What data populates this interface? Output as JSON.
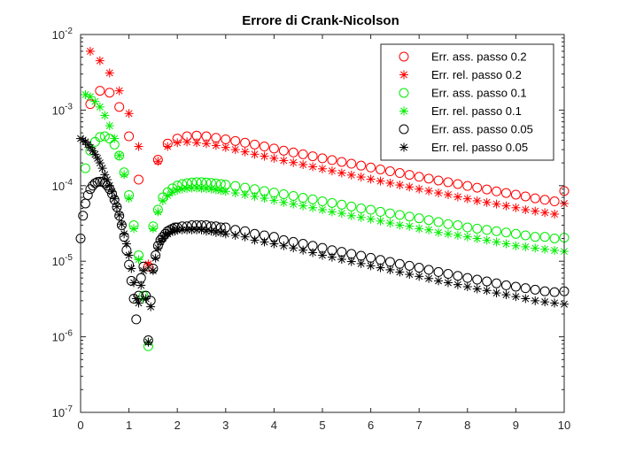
{
  "chart_data": {
    "type": "scatter",
    "title": "Errore di Crank-Nicolson",
    "xlabel": "",
    "ylabel": "",
    "xlim": [
      0,
      10
    ],
    "ylim": [
      1e-07,
      0.01
    ],
    "yscale": "log",
    "grid": false,
    "legend_position": "top-right",
    "x_ticks": [
      "0",
      "1",
      "2",
      "3",
      "4",
      "5",
      "6",
      "7",
      "8",
      "9",
      "10"
    ],
    "y_ticks": [
      {
        "base": "10",
        "exp": "-7"
      },
      {
        "base": "10",
        "exp": "-6"
      },
      {
        "base": "10",
        "exp": "-5"
      },
      {
        "base": "10",
        "exp": "-4"
      },
      {
        "base": "10",
        "exp": "-3"
      },
      {
        "base": "10",
        "exp": "-2"
      }
    ],
    "series": [
      {
        "name": "Err. ass. passo 0.2",
        "marker": "circle",
        "color": "#ff0000",
        "x": [
          0.2,
          0.4,
          0.6,
          0.8,
          1.0,
          1.2,
          1.4,
          1.6,
          1.8,
          2.0,
          2.2,
          2.4,
          2.6,
          2.8,
          3.0,
          3.2,
          3.4,
          3.6,
          3.8,
          4.0,
          4.2,
          4.4,
          4.6,
          4.8,
          5.0,
          5.2,
          5.4,
          5.6,
          5.8,
          6.0,
          6.2,
          6.4,
          6.6,
          6.8,
          7.0,
          7.2,
          7.4,
          7.6,
          7.8,
          8.0,
          8.2,
          8.4,
          8.6,
          8.8,
          9.0,
          9.2,
          9.4,
          9.6,
          9.8,
          10.0
        ],
        "y": [
          0.0012,
          0.0018,
          0.0017,
          0.0011,
          0.00045,
          0.00012,
          8.5e-06,
          0.00022,
          0.00036,
          0.00042,
          0.00045,
          0.00046,
          0.00045,
          0.00043,
          0.00041,
          0.00039,
          0.00037,
          0.00035,
          0.00033,
          0.00031,
          0.00029,
          0.000275,
          0.00026,
          0.000245,
          0.00023,
          0.000218,
          0.000206,
          0.000195,
          0.000184,
          0.000174,
          0.000164,
          0.000155,
          0.000147,
          0.000139,
          0.000131,
          0.000124,
          0.000117,
          0.000111,
          0.000105,
          9.9e-05,
          9.4e-05,
          8.9e-05,
          8.4e-05,
          8e-05,
          7.6e-05,
          7.2e-05,
          6.8e-05,
          6.5e-05,
          6.2e-05,
          8.5e-05
        ]
      },
      {
        "name": "Err. rel. passo 0.2",
        "marker": "asterisk",
        "color": "#ff0000",
        "x": [
          0.2,
          0.4,
          0.6,
          0.8,
          1.0,
          1.2,
          1.4,
          1.6,
          1.8,
          2.0,
          2.2,
          2.4,
          2.6,
          2.8,
          3.0,
          3.2,
          3.4,
          3.6,
          3.8,
          4.0,
          4.2,
          4.4,
          4.6,
          4.8,
          5.0,
          5.2,
          5.4,
          5.6,
          5.8,
          6.0,
          6.2,
          6.4,
          6.6,
          6.8,
          7.0,
          7.2,
          7.4,
          7.6,
          7.8,
          8.0,
          8.2,
          8.4,
          8.6,
          8.8,
          9.0,
          9.2,
          9.4,
          9.6,
          9.8,
          10.0
        ],
        "y": [
          0.006,
          0.0045,
          0.0031,
          0.0018,
          0.0009,
          0.00033,
          9.2e-06,
          0.00021,
          0.00033,
          0.00037,
          0.00038,
          0.00037,
          0.00036,
          0.00034,
          0.00032,
          0.0003,
          0.00028,
          0.00026,
          0.000245,
          0.00023,
          0.000215,
          0.000202,
          0.00019,
          0.000178,
          0.000167,
          0.000157,
          0.000147,
          0.000138,
          0.00013,
          0.000122,
          0.000115,
          0.000108,
          0.000102,
          9.6e-05,
          9e-05,
          8.5e-05,
          8e-05,
          7.6e-05,
          7.1e-05,
          6.7e-05,
          6.3e-05,
          6e-05,
          5.7e-05,
          5.4e-05,
          5.1e-05,
          4.8e-05,
          4.6e-05,
          4.4e-05,
          4.2e-05,
          5.8e-05
        ]
      },
      {
        "name": "Err. ass. passo 0.1",
        "marker": "circle",
        "color": "#00ee00",
        "x": [
          0.1,
          0.2,
          0.3,
          0.4,
          0.5,
          0.6,
          0.7,
          0.8,
          0.9,
          1.0,
          1.1,
          1.2,
          1.3,
          1.4,
          1.5,
          1.6,
          1.7,
          1.8,
          1.9,
          2.0,
          2.1,
          2.2,
          2.3,
          2.4,
          2.5,
          2.6,
          2.7,
          2.8,
          2.9,
          3.0,
          3.2,
          3.4,
          3.6,
          3.8,
          4.0,
          4.2,
          4.4,
          4.6,
          4.8,
          5.0,
          5.2,
          5.4,
          5.6,
          5.8,
          6.0,
          6.2,
          6.4,
          6.6,
          6.8,
          7.0,
          7.2,
          7.4,
          7.6,
          7.8,
          8.0,
          8.2,
          8.4,
          8.6,
          8.8,
          9.0,
          9.2,
          9.4,
          9.6,
          9.8,
          10.0
        ],
        "y": [
          0.00017,
          0.00029,
          0.00038,
          0.00044,
          0.00045,
          0.00042,
          0.00035,
          0.00025,
          0.00015,
          7.5e-05,
          3e-05,
          1.2e-05,
          3.5e-06,
          7.5e-07,
          2.9e-05,
          4.8e-05,
          7e-05,
          8.2e-05,
          9.2e-05,
          0.0001,
          0.000105,
          0.000108,
          0.00011,
          0.000111,
          0.000111,
          0.00011,
          0.000109,
          0.000107,
          0.000105,
          0.000103,
          9.9e-05,
          9.4e-05,
          9e-05,
          8.5e-05,
          8.1e-05,
          7.7e-05,
          7.3e-05,
          6.9e-05,
          6.6e-05,
          6.2e-05,
          5.9e-05,
          5.6e-05,
          5.3e-05,
          5e-05,
          4.8e-05,
          4.5e-05,
          4.3e-05,
          4.1e-05,
          3.9e-05,
          3.7e-05,
          3.5e-05,
          3.3e-05,
          3.1e-05,
          3e-05,
          2.8e-05,
          2.7e-05,
          2.6e-05,
          2.5e-05,
          2.4e-05,
          2.3e-05,
          2.2e-05,
          2.1e-05,
          2.1e-05,
          2e-05,
          2.05e-05
        ]
      },
      {
        "name": "Err. rel. passo 0.1",
        "marker": "asterisk",
        "color": "#00ee00",
        "x": [
          0.1,
          0.2,
          0.3,
          0.4,
          0.5,
          0.6,
          0.7,
          0.8,
          0.9,
          1.0,
          1.1,
          1.2,
          1.3,
          1.4,
          1.5,
          1.6,
          1.7,
          1.8,
          1.9,
          2.0,
          2.1,
          2.2,
          2.3,
          2.4,
          2.5,
          2.6,
          2.7,
          2.8,
          2.9,
          3.0,
          3.2,
          3.4,
          3.6,
          3.8,
          4.0,
          4.2,
          4.4,
          4.6,
          4.8,
          5.0,
          5.2,
          5.4,
          5.6,
          5.8,
          6.0,
          6.2,
          6.4,
          6.6,
          6.8,
          7.0,
          7.2,
          7.4,
          7.6,
          7.8,
          8.0,
          8.2,
          8.4,
          8.6,
          8.8,
          9.0,
          9.2,
          9.4,
          9.6,
          9.8,
          10.0
        ],
        "y": [
          0.0016,
          0.0015,
          0.0013,
          0.0011,
          0.00085,
          0.00062,
          0.00042,
          0.00025,
          0.00014,
          6.8e-05,
          2.7e-05,
          1.05e-05,
          3.2e-06,
          8.5e-07,
          2.7e-05,
          4.5e-05,
          6.3e-05,
          7.4e-05,
          8.2e-05,
          8.7e-05,
          9e-05,
          9.2e-05,
          9.3e-05,
          9.3e-05,
          9.2e-05,
          9.1e-05,
          9e-05,
          8.8e-05,
          8.6e-05,
          8.4e-05,
          8e-05,
          7.6e-05,
          7.2e-05,
          6.8e-05,
          6.4e-05,
          6e-05,
          5.7e-05,
          5.4e-05,
          5.1e-05,
          4.8e-05,
          4.5e-05,
          4.3e-05,
          4e-05,
          3.8e-05,
          3.6e-05,
          3.4e-05,
          3.2e-05,
          3e-05,
          2.9e-05,
          2.7e-05,
          2.6e-05,
          2.4e-05,
          2.3e-05,
          2.2e-05,
          2.1e-05,
          2e-05,
          1.9e-05,
          1.8e-05,
          1.7e-05,
          1.6e-05,
          1.55e-05,
          1.49e-05,
          1.44e-05,
          1.39e-05,
          1.35e-05
        ]
      },
      {
        "name": "Err. ass. passo 0.05",
        "marker": "circle",
        "color": "#000000",
        "x": [
          0,
          0.05,
          0.1,
          0.15,
          0.2,
          0.25,
          0.3,
          0.35,
          0.4,
          0.45,
          0.5,
          0.55,
          0.6,
          0.65,
          0.7,
          0.75,
          0.8,
          0.85,
          0.9,
          0.95,
          1.0,
          1.05,
          1.1,
          1.15,
          1.2,
          1.25,
          1.3,
          1.35,
          1.4,
          1.45,
          1.5,
          1.55,
          1.6,
          1.65,
          1.7,
          1.75,
          1.8,
          1.85,
          1.9,
          1.95,
          2.0,
          2.1,
          2.2,
          2.3,
          2.4,
          2.5,
          2.6,
          2.7,
          2.8,
          2.9,
          3.0,
          3.2,
          3.4,
          3.6,
          3.8,
          4.0,
          4.2,
          4.4,
          4.6,
          4.8,
          5.0,
          5.2,
          5.4,
          5.6,
          5.8,
          6.0,
          6.2,
          6.4,
          6.6,
          6.8,
          7.0,
          7.2,
          7.4,
          7.6,
          7.8,
          8.0,
          8.2,
          8.4,
          8.6,
          8.8,
          9.0,
          9.2,
          9.4,
          9.6,
          9.8,
          10.0
        ],
        "y": [
          2e-05,
          4e-05,
          5.8e-05,
          7.5e-05,
          9e-05,
          0.0001,
          0.000108,
          0.000112,
          0.000113,
          0.000112,
          0.000108,
          0.0001,
          9e-05,
          7.8e-05,
          6.5e-05,
          5.2e-05,
          4e-05,
          3e-05,
          2.1e-05,
          1.4e-05,
          9e-06,
          5.5e-06,
          3.2e-06,
          1.7e-06,
          3.5e-06,
          6e-06,
          8.5e-06,
          3.5e-06,
          9e-07,
          3e-06,
          8e-06,
          1.2e-05,
          1.6e-05,
          1.9e-05,
          2.1e-05,
          2.3e-05,
          2.5e-05,
          2.6e-05,
          2.7e-05,
          2.8e-05,
          2.8e-05,
          2.9e-05,
          2.9e-05,
          3e-05,
          3e-05,
          3e-05,
          3e-05,
          2.9e-05,
          2.9e-05,
          2.8e-05,
          2.8e-05,
          2.6e-05,
          2.5e-05,
          2.3e-05,
          2.2e-05,
          2.1e-05,
          1.9e-05,
          1.8e-05,
          1.7e-05,
          1.6e-05,
          1.5e-05,
          1.4e-05,
          1.33e-05,
          1.25e-05,
          1.18e-05,
          1.11e-05,
          1.04e-05,
          9.8e-06,
          9.2e-06,
          8.7e-06,
          8.2e-06,
          7.7e-06,
          7.2e-06,
          6.8e-06,
          6.4e-06,
          6e-06,
          5.7e-06,
          5.4e-06,
          5.1e-06,
          4.8e-06,
          4.6e-06,
          4.4e-06,
          4.2e-06,
          4e-06,
          3.9e-06,
          4e-06
        ]
      },
      {
        "name": "Err. rel. passo 0.05",
        "marker": "asterisk",
        "color": "#000000",
        "x": [
          0.0,
          0.05,
          0.1,
          0.15,
          0.2,
          0.25,
          0.3,
          0.35,
          0.4,
          0.45,
          0.5,
          0.55,
          0.6,
          0.65,
          0.7,
          0.75,
          0.8,
          0.85,
          0.9,
          0.95,
          1.0,
          1.05,
          1.1,
          1.15,
          1.2,
          1.25,
          1.3,
          1.35,
          1.4,
          1.45,
          1.5,
          1.55,
          1.6,
          1.65,
          1.7,
          1.75,
          1.8,
          1.85,
          1.9,
          1.95,
          2.0,
          2.1,
          2.2,
          2.3,
          2.4,
          2.5,
          2.6,
          2.7,
          2.8,
          2.9,
          3.0,
          3.2,
          3.4,
          3.6,
          3.8,
          4.0,
          4.2,
          4.4,
          4.6,
          4.8,
          5.0,
          5.2,
          5.4,
          5.6,
          5.8,
          6.0,
          6.2,
          6.4,
          6.6,
          6.8,
          7.0,
          7.2,
          7.4,
          7.6,
          7.8,
          8.0,
          8.2,
          8.4,
          8.6,
          8.8,
          9.0,
          9.2,
          9.4,
          9.6,
          9.8,
          10.0
        ],
        "y": [
          0.00042,
          0.0004,
          0.00038,
          0.00035,
          0.00032,
          0.00029,
          0.00026,
          0.00023,
          0.0002,
          0.00017,
          0.00014,
          0.00012,
          0.0001,
          8.3e-05,
          6.7e-05,
          5.3e-05,
          4.1e-05,
          3.1e-05,
          2.3e-05,
          1.7e-05,
          1.2e-05,
          8e-06,
          5.2e-06,
          3.2e-06,
          2.8e-06,
          4.8e-06,
          7.5e-06,
          3.2e-06,
          8.5e-07,
          2.5e-06,
          7.5e-06,
          1.1e-05,
          1.5e-05,
          1.8e-05,
          2e-05,
          2.2e-05,
          2.3e-05,
          2.4e-05,
          2.5e-05,
          2.5e-05,
          2.6e-05,
          2.6e-05,
          2.6e-05,
          2.6e-05,
          2.6e-05,
          2.6e-05,
          2.5e-05,
          2.5e-05,
          2.4e-05,
          2.4e-05,
          2.3e-05,
          2.2e-05,
          2.1e-05,
          1.9e-05,
          1.8e-05,
          1.7e-05,
          1.6e-05,
          1.5e-05,
          1.4e-05,
          1.3e-05,
          1.2e-05,
          1.13e-05,
          1.06e-05,
          9.9e-06,
          9.3e-06,
          8.7e-06,
          8.2e-06,
          7.7e-06,
          7.2e-06,
          6.7e-06,
          6.3e-06,
          5.9e-06,
          5.5e-06,
          5.2e-06,
          4.9e-06,
          4.6e-06,
          4.3e-06,
          4.1e-06,
          3.8e-06,
          3.6e-06,
          3.4e-06,
          3.2e-06,
          3e-06,
          2.9e-06,
          2.8e-06,
          2.7e-06
        ]
      }
    ]
  }
}
